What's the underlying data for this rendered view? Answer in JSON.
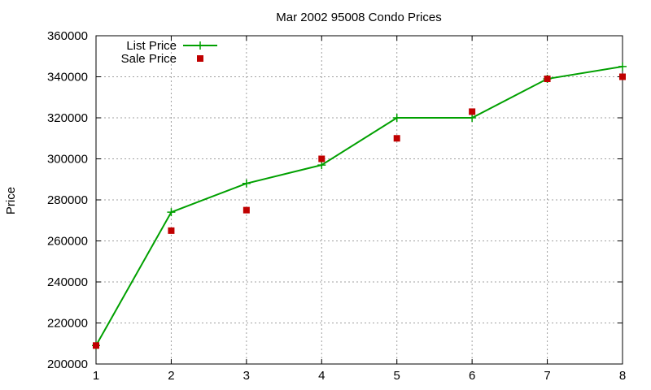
{
  "chart_data": {
    "type": "line",
    "title": "Mar 2002 95008 Condo Prices",
    "xlabel": "",
    "ylabel": "Price",
    "xlim": [
      1,
      8
    ],
    "ylim": [
      200000,
      360000
    ],
    "x_ticks": [
      1,
      2,
      3,
      4,
      5,
      6,
      7,
      8
    ],
    "y_ticks": [
      200000,
      220000,
      240000,
      260000,
      280000,
      300000,
      320000,
      340000,
      360000
    ],
    "grid": true,
    "legend_position": "top-left",
    "x": [
      1,
      2,
      3,
      4,
      5,
      6,
      7,
      8
    ],
    "series": [
      {
        "name": "List Price",
        "style": "line-points",
        "color": "#00a000",
        "values": [
          209000,
          274000,
          288000,
          297000,
          320000,
          320000,
          339000,
          345000
        ]
      },
      {
        "name": "Sale Price",
        "style": "points",
        "color": "#c00000",
        "values": [
          209000,
          265000,
          275000,
          300000,
          310000,
          323000,
          339000,
          340000
        ]
      }
    ]
  }
}
